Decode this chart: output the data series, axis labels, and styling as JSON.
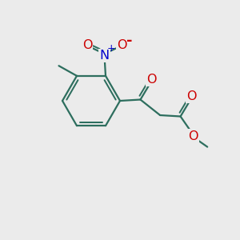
{
  "background_color": "#ebebeb",
  "bond_color": "#2d6e5e",
  "bond_width": 1.6,
  "atom_colors": {
    "O": "#cc0000",
    "N": "#0000cc"
  },
  "font_size_atom": 11.5
}
